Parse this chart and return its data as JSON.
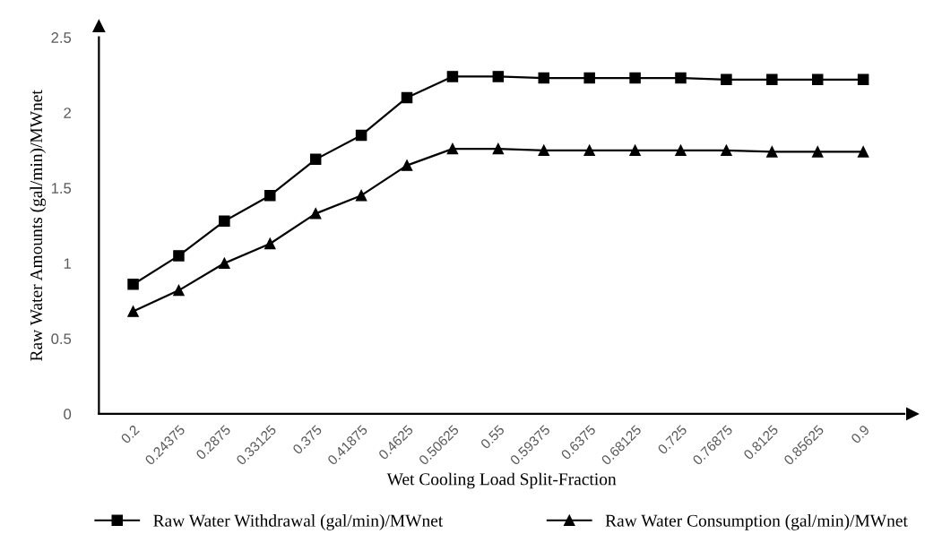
{
  "chart_data": {
    "type": "line",
    "xlabel": "Wet Cooling Load Split-Fraction",
    "ylabel": "Raw Water Amounts (gal/min)/MWnet",
    "categories": [
      "0.2",
      "0.24375",
      "0.2875",
      "0.33125",
      "0.375",
      "0.41875",
      "0.4625",
      "0.50625",
      "0.55",
      "0.59375",
      "0.6375",
      "0.68125",
      "0.725",
      "0.76875",
      "0.8125",
      "0.85625",
      "0.9"
    ],
    "series": [
      {
        "name": "Raw Water Withdrawal (gal/min)/MWnet",
        "color": "#000000",
        "marker": "square",
        "values": [
          0.86,
          1.05,
          1.28,
          1.45,
          1.69,
          1.85,
          2.1,
          2.24,
          2.24,
          2.23,
          2.23,
          2.23,
          2.23,
          2.22,
          2.22,
          2.22,
          2.22
        ]
      },
      {
        "name": "Raw Water Consumption (gal/min)/MWnet",
        "color": "#000000",
        "marker": "triangle",
        "values": [
          0.68,
          0.82,
          1.0,
          1.13,
          1.33,
          1.45,
          1.65,
          1.76,
          1.76,
          1.75,
          1.75,
          1.75,
          1.75,
          1.75,
          1.74,
          1.74,
          1.74
        ]
      }
    ],
    "ylim": [
      0,
      2.5
    ],
    "yticks": [
      0,
      0.5,
      1,
      1.5,
      2,
      2.5
    ],
    "grid": false,
    "legend": "bottom",
    "line_style": "solid"
  }
}
